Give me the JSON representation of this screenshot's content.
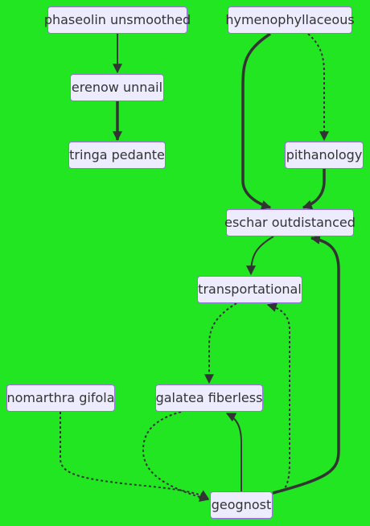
{
  "diagram": {
    "type": "flowchart",
    "background": "#22e622",
    "node_fill": "#ececfe",
    "node_border": "#9370db",
    "edge_color": "#333333",
    "nodes": [
      {
        "id": "n1",
        "label": "phaseolin unsmoothed"
      },
      {
        "id": "n2",
        "label": "hymenophyllaceous"
      },
      {
        "id": "n3",
        "label": "erenow unnail"
      },
      {
        "id": "n4",
        "label": "tringa pedante"
      },
      {
        "id": "n5",
        "label": "pithanology"
      },
      {
        "id": "n6",
        "label": "eschar outdistanced"
      },
      {
        "id": "n7",
        "label": "transportational"
      },
      {
        "id": "n8",
        "label": "nomarthra gifola"
      },
      {
        "id": "n9",
        "label": "galatea fiberless"
      },
      {
        "id": "n10",
        "label": "geognost"
      }
    ],
    "edges": [
      {
        "from": "n1",
        "to": "n3",
        "style": "normal"
      },
      {
        "from": "n3",
        "to": "n4",
        "style": "thick"
      },
      {
        "from": "n2",
        "to": "n6",
        "style": "thick"
      },
      {
        "from": "n2",
        "to": "n5",
        "style": "dotted"
      },
      {
        "from": "n5",
        "to": "n6",
        "style": "thick"
      },
      {
        "from": "n6",
        "to": "n7",
        "style": "normal"
      },
      {
        "from": "n7",
        "to": "n9",
        "style": "dotted"
      },
      {
        "from": "n8",
        "to": "n10",
        "style": "dotted"
      },
      {
        "from": "n9",
        "to": "n10",
        "style": "dotted"
      },
      {
        "from": "n10",
        "to": "n9",
        "style": "normal"
      },
      {
        "from": "n10",
        "to": "n7",
        "style": "dotted"
      },
      {
        "from": "n10",
        "to": "n6",
        "style": "thick"
      }
    ]
  }
}
